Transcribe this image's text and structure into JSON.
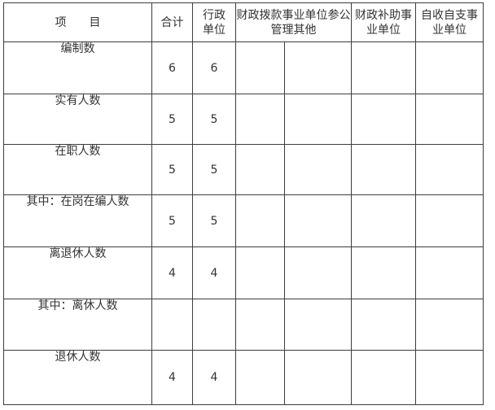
{
  "page": {
    "background": "#ffffff"
  },
  "colors": {
    "border": "#3d3d3d",
    "text": "#333333"
  },
  "table": {
    "header": {
      "item": "项　　目",
      "total": "合计",
      "admin_lines": [
        "行政",
        "单位"
      ],
      "fiscal_alloc_lines": [
        "财政拨款事业单位参公",
        "管理其他"
      ],
      "fiscal_subsidy_lines": [
        "财政补助事",
        "业单位"
      ],
      "self_support_lines": [
        "自收自支事",
        "业单位"
      ]
    },
    "rows": [
      {
        "label": "编制数",
        "total": "6",
        "admin": "6",
        "alloc_a": "",
        "alloc_b": "",
        "subsidy": "",
        "self": ""
      },
      {
        "label": "实有人数",
        "total": "5",
        "admin": "5",
        "alloc_a": "",
        "alloc_b": "",
        "subsidy": "",
        "self": ""
      },
      {
        "label": "在职人数",
        "total": "5",
        "admin": "5",
        "alloc_a": "",
        "alloc_b": "",
        "subsidy": "",
        "self": ""
      },
      {
        "label": "其中：在岗在编人数",
        "total": "5",
        "admin": "5",
        "alloc_a": "",
        "alloc_b": "",
        "subsidy": "",
        "self": ""
      },
      {
        "label": "离退休人数",
        "total": "4",
        "admin": "4",
        "alloc_a": "",
        "alloc_b": "",
        "subsidy": "",
        "self": ""
      },
      {
        "label": "其中：离休人数",
        "total": "",
        "admin": "",
        "alloc_a": "",
        "alloc_b": "",
        "subsidy": "",
        "self": ""
      },
      {
        "label": "退休人数",
        "total": "4",
        "admin": "4",
        "alloc_a": "",
        "alloc_b": "",
        "subsidy": "",
        "self": ""
      }
    ]
  }
}
